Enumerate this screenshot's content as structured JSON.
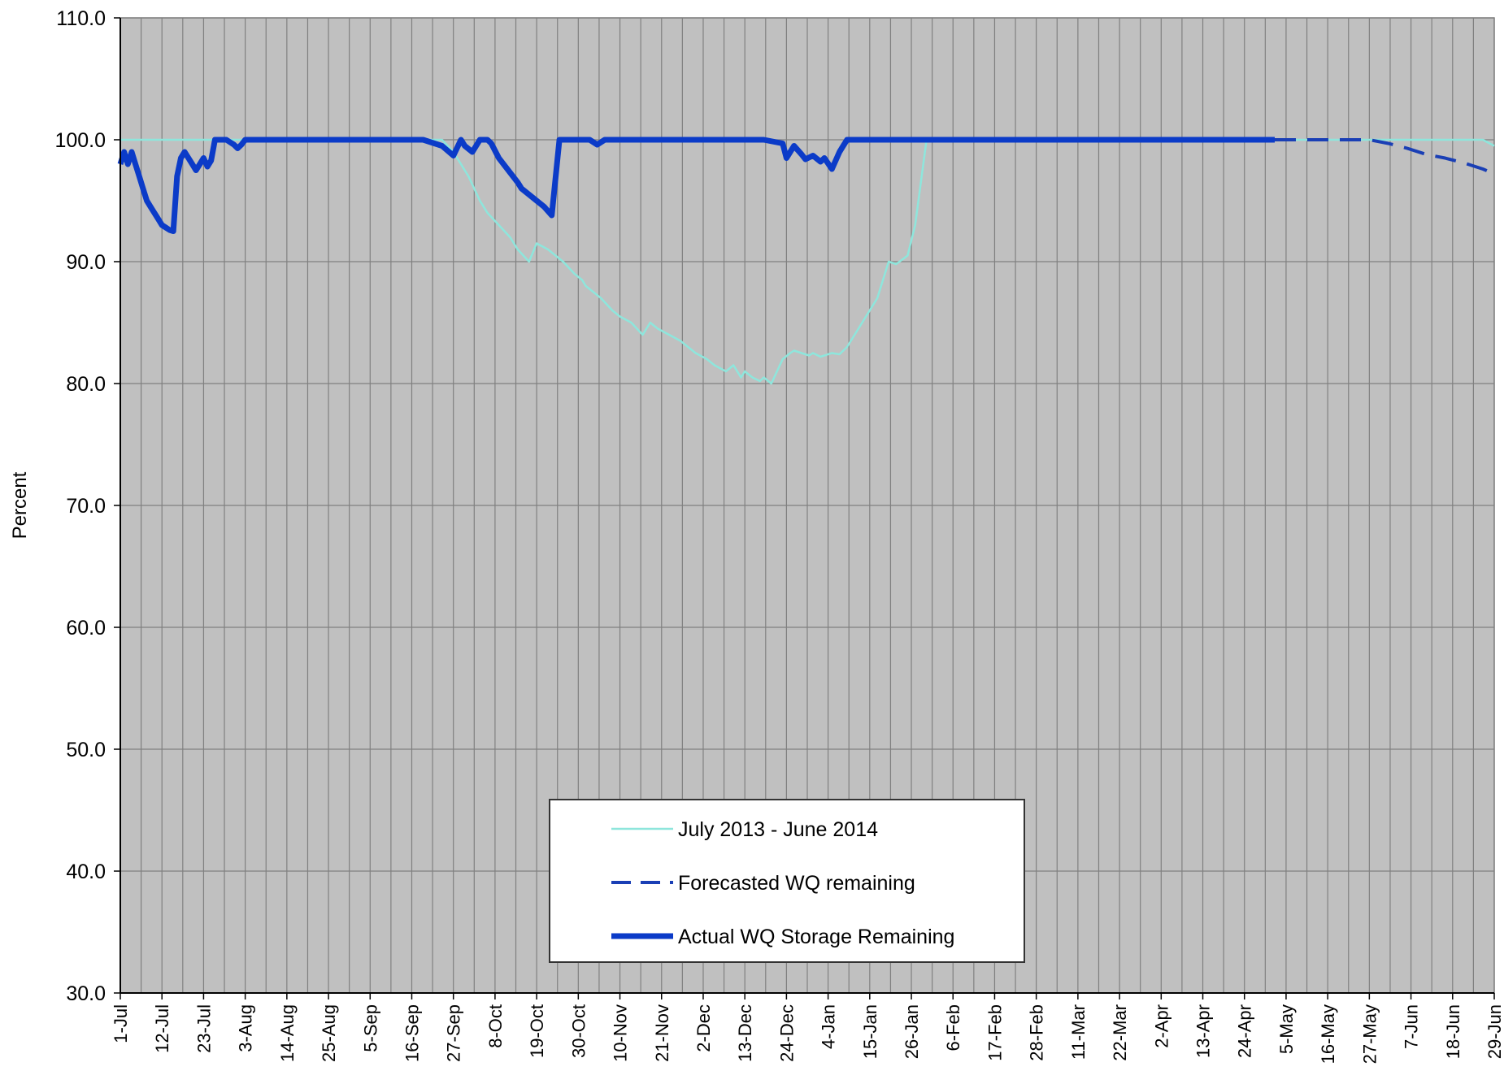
{
  "chart_data": {
    "type": "line",
    "title": "",
    "xlabel": "",
    "ylabel": "Percent",
    "ylim": [
      30,
      110
    ],
    "yticks": [
      "30.0",
      "40.0",
      "50.0",
      "60.0",
      "70.0",
      "80.0",
      "90.0",
      "100.0",
      "110.0"
    ],
    "x_range_days": [
      0,
      363
    ],
    "x_tick_labels": [
      "1-Jul",
      "12-Jul",
      "23-Jul",
      "3-Aug",
      "14-Aug",
      "25-Aug",
      "5-Sep",
      "16-Sep",
      "27-Sep",
      "8-Oct",
      "19-Oct",
      "30-Oct",
      "10-Nov",
      "21-Nov",
      "2-Dec",
      "13-Dec",
      "24-Dec",
      "4-Jan",
      "15-Jan",
      "26-Jan",
      "6-Feb",
      "17-Feb",
      "28-Feb",
      "11-Mar",
      "22-Mar",
      "2-Apr",
      "13-Apr",
      "24-Apr",
      "5-May",
      "16-May",
      "27-May",
      "7-Jun",
      "18-Jun",
      "29-Jun"
    ],
    "grid": true,
    "legend_position": "bottom-center",
    "series": [
      {
        "name": "July 2013 - June 2014",
        "color": "#8ee6dc",
        "style": "solid-thin",
        "x": [
          0,
          20,
          40,
          60,
          80,
          85,
          88,
          90,
          92,
          95,
          97,
          100,
          103,
          105,
          108,
          110,
          113,
          115,
          117,
          120,
          122,
          123,
          125,
          127,
          130,
          132,
          135,
          138,
          140,
          142,
          145,
          148,
          150,
          152,
          155,
          157,
          160,
          162,
          164,
          165,
          167,
          169,
          170,
          172,
          175,
          177,
          178,
          180,
          182,
          183,
          185,
          188,
          190,
          192,
          195,
          200,
          203,
          205,
          208,
          210,
          213,
          350,
          355,
          360,
          363
        ],
        "y": [
          100,
          100,
          100,
          100,
          100,
          100,
          99,
          98,
          97,
          95,
          94,
          93,
          92,
          91,
          90,
          91.5,
          91,
          90.5,
          90,
          89,
          88.5,
          88,
          87.5,
          87,
          86,
          85.5,
          85,
          84,
          85,
          84.5,
          84,
          83.5,
          83,
          82.5,
          82,
          81.5,
          81,
          81.5,
          80.5,
          81,
          80.5,
          80.2,
          80.5,
          80,
          82,
          82.5,
          82.7,
          82.5,
          82.3,
          82.5,
          82.2,
          82.5,
          82.4,
          83,
          84.5,
          87,
          90,
          89.8,
          90.5,
          93,
          100,
          100,
          100,
          100,
          99.5
        ]
      },
      {
        "name": "Forecasted WQ remaining",
        "color": "#1a3fb5",
        "style": "dashed",
        "x": [
          305,
          310,
          320,
          330,
          335,
          340,
          345,
          350,
          355,
          360,
          363
        ],
        "y": [
          100,
          100,
          100,
          100,
          99.7,
          99.3,
          98.8,
          98.5,
          98.1,
          97.6,
          97.2
        ]
      },
      {
        "name": "Actual WQ Storage Remaining",
        "color": "#0b3bc8",
        "style": "solid-thick",
        "x": [
          0,
          1,
          2,
          3,
          4,
          5,
          6,
          7,
          8,
          9,
          10,
          11,
          12,
          13,
          14,
          15,
          16,
          17,
          18,
          19,
          20,
          21,
          22,
          23,
          24,
          25,
          26,
          27,
          28,
          29,
          30,
          31,
          32,
          33,
          34,
          35,
          36,
          37,
          38,
          40,
          45,
          60,
          80,
          85,
          88,
          90,
          91,
          93,
          95,
          96,
          97,
          98,
          100,
          103,
          105,
          106,
          108,
          110,
          112,
          114,
          116,
          118,
          120,
          121,
          122,
          124,
          126,
          128,
          130,
          135,
          140,
          145,
          150,
          155,
          160,
          165,
          170,
          175,
          176,
          178,
          180,
          181,
          183,
          185,
          186,
          188,
          190,
          191,
          192,
          193,
          195,
          200,
          210,
          220,
          250,
          270,
          290,
          300,
          305
        ],
        "y": [
          98,
          99,
          98,
          99,
          98,
          97,
          96,
          95,
          94.5,
          94,
          93.5,
          93,
          92.8,
          92.6,
          92.5,
          97,
          98.5,
          99,
          98.5,
          98,
          97.5,
          98,
          98.5,
          97.8,
          98.3,
          100,
          100,
          100,
          100,
          99.8,
          99.6,
          99.3,
          99.6,
          100,
          100,
          100,
          100,
          100,
          100,
          100,
          100,
          100,
          100,
          99.5,
          98.7,
          100,
          99.5,
          99,
          100,
          100,
          100,
          99.7,
          98.5,
          97.3,
          96.5,
          96,
          95.5,
          95,
          94.5,
          93.8,
          100,
          100,
          100,
          100,
          100,
          100,
          99.6,
          100,
          100,
          100,
          100,
          100,
          100,
          100,
          100,
          100,
          100,
          99.7,
          98.5,
          99.5,
          98.8,
          98.4,
          98.7,
          98.2,
          98.5,
          97.6,
          99,
          99.5,
          100,
          100,
          100,
          100,
          100,
          100,
          100,
          100,
          100,
          100,
          100
        ]
      }
    ]
  }
}
